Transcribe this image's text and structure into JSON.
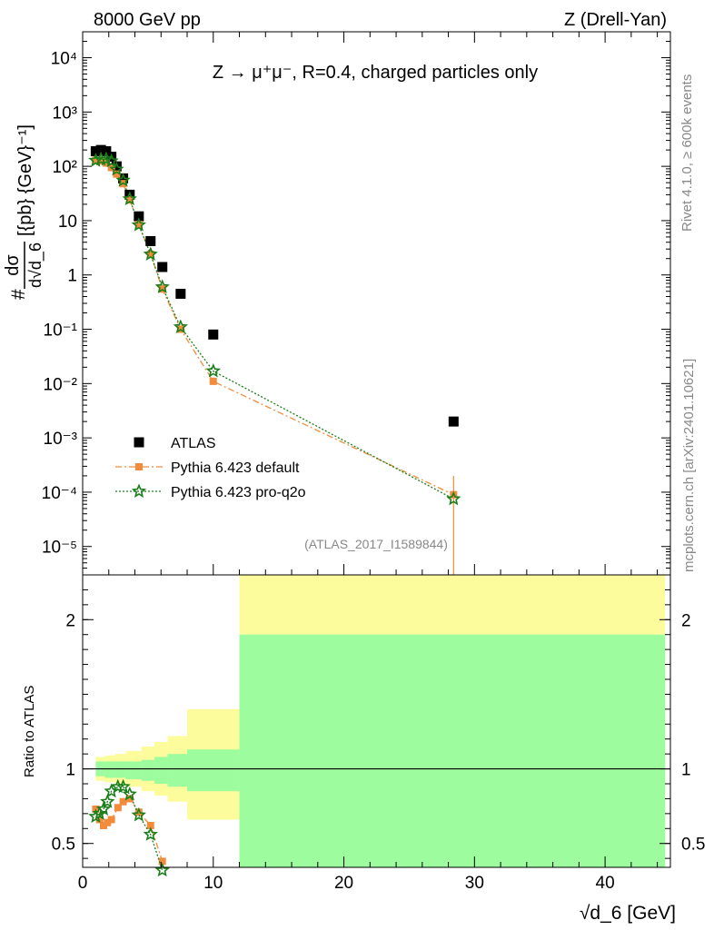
{
  "header": {
    "left": "8000 GeV pp",
    "right": "Z (Drell-Yan)"
  },
  "side": {
    "rivet": "Rivet 4.1.0, ≥ 600k events",
    "mcplots": "mcplots.cern.ch [arXiv:2401.10621]"
  },
  "chart_data": [
    {
      "type": "scatter",
      "panel": "main",
      "title": "Z → μ⁺μ⁻, R=0.4, charged particles only",
      "analysis_tag": "(ATLAS_2017_I1589844)",
      "ylabel_parts": {
        "hash": "#",
        "num": "dσ",
        "den": "d√d_6",
        "units": "[{pb} {GeV}⁻¹]"
      },
      "yscale": "log",
      "ylim": [
        3e-06,
        30000
      ],
      "xlim": [
        0,
        45
      ],
      "y_ticks": [
        {
          "v": 1e-05,
          "label": "10⁻⁵"
        },
        {
          "v": 0.0001,
          "label": "10⁻⁴"
        },
        {
          "v": 0.001,
          "label": "10⁻³"
        },
        {
          "v": 0.01,
          "label": "10⁻²"
        },
        {
          "v": 0.1,
          "label": "10⁻¹"
        },
        {
          "v": 1,
          "label": "1"
        },
        {
          "v": 10,
          "label": "10"
        },
        {
          "v": 100,
          "label": "10²"
        },
        {
          "v": 1000,
          "label": "10³"
        },
        {
          "v": 10000,
          "label": "10⁴"
        }
      ],
      "legend_position": "bottom-left",
      "series": [
        {
          "name": "ATLAS",
          "marker": "square",
          "color": "#000000",
          "x": [
            1.0,
            1.4,
            1.8,
            2.2,
            2.6,
            3.1,
            3.6,
            4.3,
            5.2,
            6.1,
            7.5,
            10.0,
            28.4
          ],
          "y": [
            190,
            200,
            190,
            150,
            100,
            60,
            30,
            12,
            4.2,
            1.4,
            0.45,
            0.08,
            0.002
          ]
        },
        {
          "name": "Pythia 6.423 default",
          "marker": "square-small",
          "color": "#f28c3c",
          "line": "dashdot",
          "x": [
            1.0,
            1.4,
            1.8,
            2.2,
            2.6,
            3.1,
            3.6,
            4.3,
            5.2,
            6.1,
            7.5,
            10.0,
            28.4
          ],
          "y": [
            130,
            125,
            115,
            95,
            72,
            48,
            24,
            8.5,
            2.4,
            0.55,
            0.1,
            0.011,
            9e-05
          ]
        },
        {
          "name": "Pythia 6.423 pro-q2o",
          "marker": "star",
          "color": "#1a7f1a",
          "line": "dotted",
          "x": [
            1.0,
            1.4,
            1.8,
            2.2,
            2.6,
            3.1,
            3.6,
            4.3,
            5.2,
            6.1,
            7.5,
            10.0,
            28.4
          ],
          "y": [
            128,
            135,
            135,
            125,
            88,
            55,
            25,
            8.3,
            2.4,
            0.6,
            0.11,
            0.017,
            7.5e-05
          ]
        }
      ]
    },
    {
      "type": "line",
      "panel": "ratio",
      "ylabel": "Ratio to ATLAS",
      "xlabel": "√d_6 [GeV]",
      "xlim": [
        0,
        45
      ],
      "ylim": [
        0.34,
        2.3
      ],
      "x_ticks": [
        0,
        10,
        20,
        30,
        40
      ],
      "y_ticks": [
        0.5,
        1,
        2
      ],
      "bands": {
        "edges": [
          1.0,
          1.7,
          2.5,
          3.3,
          4.5,
          5.5,
          6.5,
          8.0,
          12.0,
          44.6
        ],
        "stat_up": [
          1.05,
          1.05,
          1.05,
          1.05,
          1.06,
          1.08,
          1.1,
          1.13,
          1.9
        ],
        "stat_down": [
          0.95,
          0.94,
          0.94,
          0.93,
          0.92,
          0.9,
          0.88,
          0.85,
          0.34
        ],
        "tot_up": [
          1.08,
          1.09,
          1.1,
          1.12,
          1.15,
          1.18,
          1.22,
          1.4,
          2.3
        ],
        "tot_down": [
          0.92,
          0.91,
          0.9,
          0.88,
          0.85,
          0.82,
          0.78,
          0.66,
          0.34
        ],
        "stat_color": "#9dfc9d",
        "tot_color": "#fcfc9d"
      },
      "series": [
        {
          "name": "Pythia 6.423 default",
          "color": "#f28c3c",
          "x": [
            1.0,
            1.3,
            1.6,
            1.9,
            2.2,
            2.7,
            3.1,
            3.6,
            4.3,
            5.2,
            6.1
          ],
          "y": [
            0.73,
            0.66,
            0.62,
            0.64,
            0.66,
            0.74,
            0.78,
            0.8,
            0.71,
            0.62,
            0.38
          ]
        },
        {
          "name": "Pythia 6.423 pro-q2o",
          "color": "#1a7f1a",
          "x": [
            1.0,
            1.3,
            1.6,
            1.9,
            2.2,
            2.7,
            3.1,
            3.6,
            4.3,
            5.2,
            6.1
          ],
          "y": [
            0.68,
            0.7,
            0.73,
            0.78,
            0.85,
            0.88,
            0.88,
            0.83,
            0.69,
            0.56,
            0.32
          ]
        }
      ]
    }
  ]
}
